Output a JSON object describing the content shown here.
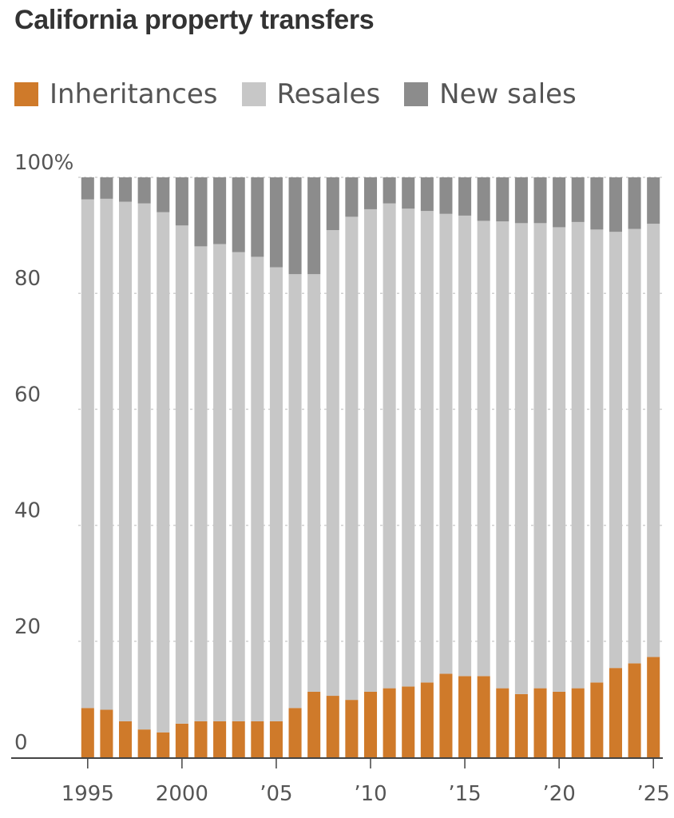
{
  "colors": {
    "inheritances": "#cf7a2a",
    "resales": "#c7c7c7",
    "new_sales": "#8c8c8c",
    "gridline": "#d0d0d0",
    "axis": "#444444",
    "text": "#555555"
  },
  "chart_data": {
    "type": "bar",
    "stacked": true,
    "title": "California property transfers",
    "xlabel": "",
    "ylabel": "",
    "ylim": [
      0,
      100
    ],
    "y_ticks": [
      {
        "value": 0,
        "label": "0"
      },
      {
        "value": 20,
        "label": "20"
      },
      {
        "value": 40,
        "label": "40"
      },
      {
        "value": 60,
        "label": "60"
      },
      {
        "value": 80,
        "label": "80"
      },
      {
        "value": 100,
        "label": "100%"
      }
    ],
    "x_ticks": [
      {
        "year": 1995,
        "label": "1995"
      },
      {
        "year": 2000,
        "label": "2000"
      },
      {
        "year": 2005,
        "label": "’05"
      },
      {
        "year": 2010,
        "label": "’10"
      },
      {
        "year": 2015,
        "label": "’15"
      },
      {
        "year": 2020,
        "label": "’20"
      },
      {
        "year": 2025,
        "label": "’25"
      }
    ],
    "categories": [
      1995,
      1996,
      1997,
      1998,
      1999,
      2000,
      2001,
      2002,
      2003,
      2004,
      2005,
      2006,
      2007,
      2008,
      2009,
      2010,
      2011,
      2012,
      2013,
      2014,
      2015,
      2016,
      2017,
      2018,
      2019,
      2020,
      2021,
      2022,
      2023,
      2024,
      2025
    ],
    "legend": [
      "Inheritances",
      "Resales",
      "New sales"
    ],
    "series": [
      {
        "name": "Inheritances",
        "key": "inheritances",
        "values": [
          8.5,
          8.2,
          6.2,
          4.8,
          4.3,
          5.8,
          6.2,
          6.2,
          6.2,
          6.2,
          6.2,
          8.5,
          11.3,
          10.6,
          9.9,
          11.3,
          11.9,
          12.2,
          12.9,
          14.4,
          14.0,
          14.0,
          11.9,
          10.9,
          11.9,
          11.3,
          11.9,
          12.9,
          15.4,
          16.2,
          17.3
        ]
      },
      {
        "name": "Resales",
        "key": "resales",
        "values": [
          87.7,
          88.1,
          89.6,
          90.7,
          89.7,
          85.9,
          81.9,
          82.3,
          80.9,
          80.1,
          78.3,
          74.8,
          72.0,
          80.3,
          83.3,
          83.2,
          83.6,
          82.4,
          81.3,
          79.3,
          79.4,
          78.5,
          80.5,
          81.2,
          80.2,
          80.1,
          80.4,
          78.1,
          75.2,
          74.9,
          74.7
        ]
      },
      {
        "name": "New sales",
        "key": "new_sales",
        "values": [
          3.8,
          3.7,
          4.2,
          4.5,
          6.0,
          8.3,
          11.9,
          11.5,
          12.9,
          13.7,
          15.5,
          16.7,
          16.7,
          9.1,
          6.8,
          5.5,
          4.5,
          5.4,
          5.8,
          6.3,
          6.6,
          7.5,
          7.6,
          7.9,
          7.9,
          8.6,
          7.7,
          9.0,
          9.4,
          8.9,
          8.0
        ]
      }
    ]
  }
}
